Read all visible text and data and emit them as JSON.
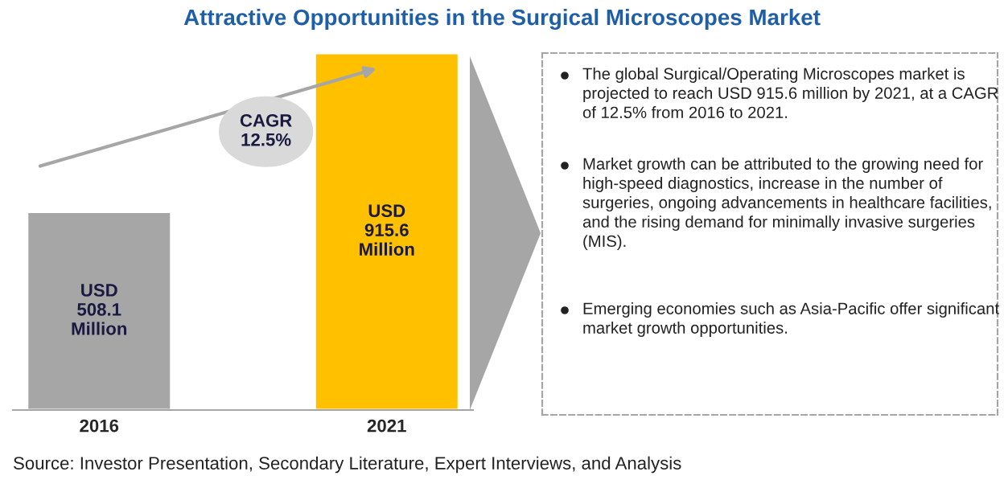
{
  "chart_data": [
    {
      "type": "bar",
      "title": "Attractive Opportunities in the Surgical Microscopes Market",
      "categories": [
        "2016",
        "2021"
      ],
      "values": [
        508.1,
        915.6
      ],
      "colors": [
        "#a6a6a6",
        "#ffc000"
      ],
      "value_labels": [
        "USD\n508.1\nMillion",
        "USD\n915.6\nMillion"
      ],
      "tick_labels": "x",
      "annotations": [
        "CAGR\n12.5%",
        "Source: Investor Presentation, Secondary Literature, Expert Interviews, and Analysis"
      ]
    },
    {
      "type": "other",
      "annotations": [
        "The global Surgical/Operating Microscopes market is projected to reach USD 915.6 million by 2021, at a CAGR of 12.5% from 2016 to 2021.",
        "Market growth can be attributed to the growing need for high-speed diagnostics, increase in the number of surgeries, ongoing advancements in healthcare facilities, and the rising demand for minimally invasive surgeries (MIS).",
        "Emerging economies such as Asia-Pacific offer significant market growth opportunities."
      ]
    }
  ]
}
